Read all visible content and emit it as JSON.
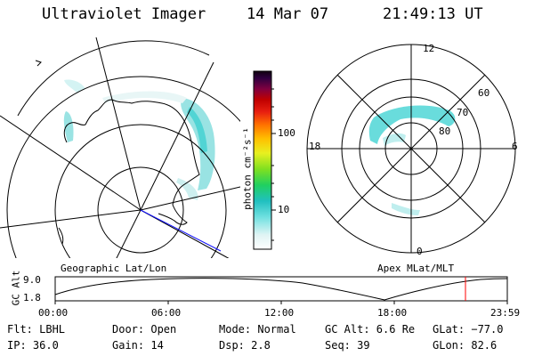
{
  "header": {
    "instrument": "Ultraviolet Imager",
    "date": "14 Mar 07",
    "time": "21:49:13 UT"
  },
  "left_map": {
    "label": "Geographic Lat/Lon"
  },
  "right_map": {
    "label": "Apex MLat/MLT",
    "mlt_top": "12",
    "mlt_left": "18",
    "mlt_right": "6",
    "mlt_bottom": "0",
    "lat_60": "60",
    "lat_70": "70",
    "lat_80": "80"
  },
  "colorbar": {
    "unit": "photon cm⁻²s⁻¹",
    "tick_100": "100",
    "tick_10": "10"
  },
  "timeline": {
    "axis_label": "GC Alt",
    "y_top": "9.0",
    "y_bottom": "1.8",
    "ticks": [
      "00:00",
      "06:00",
      "12:00",
      "18:00",
      "23:59"
    ]
  },
  "info": {
    "filter": "Flt: LBHL",
    "door": "Door: Open",
    "mode": "Mode: Normal",
    "gc_alt": "GC Alt: 6.6 Re",
    "glat": "GLat: −77.0",
    "ip": "IP: 36.0",
    "gain": "Gain: 14",
    "dsp": "Dsp:    2.8",
    "seq": "Seq: 39",
    "glon": "GLon:  82.6"
  }
}
